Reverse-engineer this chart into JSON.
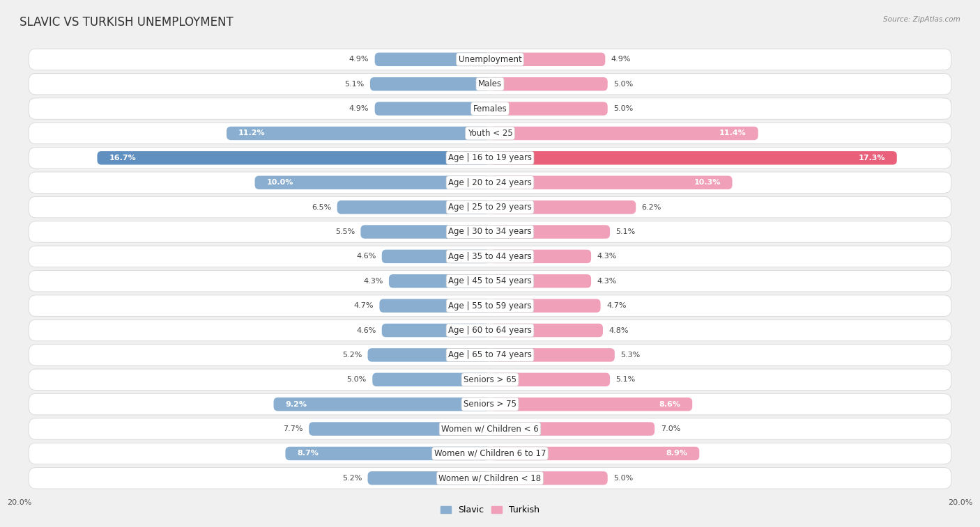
{
  "title": "SLAVIC VS TURKISH UNEMPLOYMENT",
  "source": "Source: ZipAtlas.com",
  "categories": [
    "Unemployment",
    "Males",
    "Females",
    "Youth < 25",
    "Age | 16 to 19 years",
    "Age | 20 to 24 years",
    "Age | 25 to 29 years",
    "Age | 30 to 34 years",
    "Age | 35 to 44 years",
    "Age | 45 to 54 years",
    "Age | 55 to 59 years",
    "Age | 60 to 64 years",
    "Age | 65 to 74 years",
    "Seniors > 65",
    "Seniors > 75",
    "Women w/ Children < 6",
    "Women w/ Children 6 to 17",
    "Women w/ Children < 18"
  ],
  "slavic_values": [
    4.9,
    5.1,
    4.9,
    11.2,
    16.7,
    10.0,
    6.5,
    5.5,
    4.6,
    4.3,
    4.7,
    4.6,
    5.2,
    5.0,
    9.2,
    7.7,
    8.7,
    5.2
  ],
  "turkish_values": [
    4.9,
    5.0,
    5.0,
    11.4,
    17.3,
    10.3,
    6.2,
    5.1,
    4.3,
    4.3,
    4.7,
    4.8,
    5.3,
    5.1,
    8.6,
    7.0,
    8.9,
    5.0
  ],
  "slavic_color": "#89aed0",
  "turkish_color": "#f0a0b8",
  "slavic_highlight": "#6090c0",
  "turkish_highlight": "#e8607a",
  "bg_color": "#f0f0f0",
  "row_bg_light": "#f8f8f8",
  "row_bg_dark": "#ebebeb",
  "axis_max": 20.0,
  "legend_slavic": "Slavic",
  "legend_turkish": "Turkish",
  "bar_height": 0.55,
  "title_fontsize": 12,
  "label_fontsize": 8.5,
  "value_fontsize": 8.0
}
